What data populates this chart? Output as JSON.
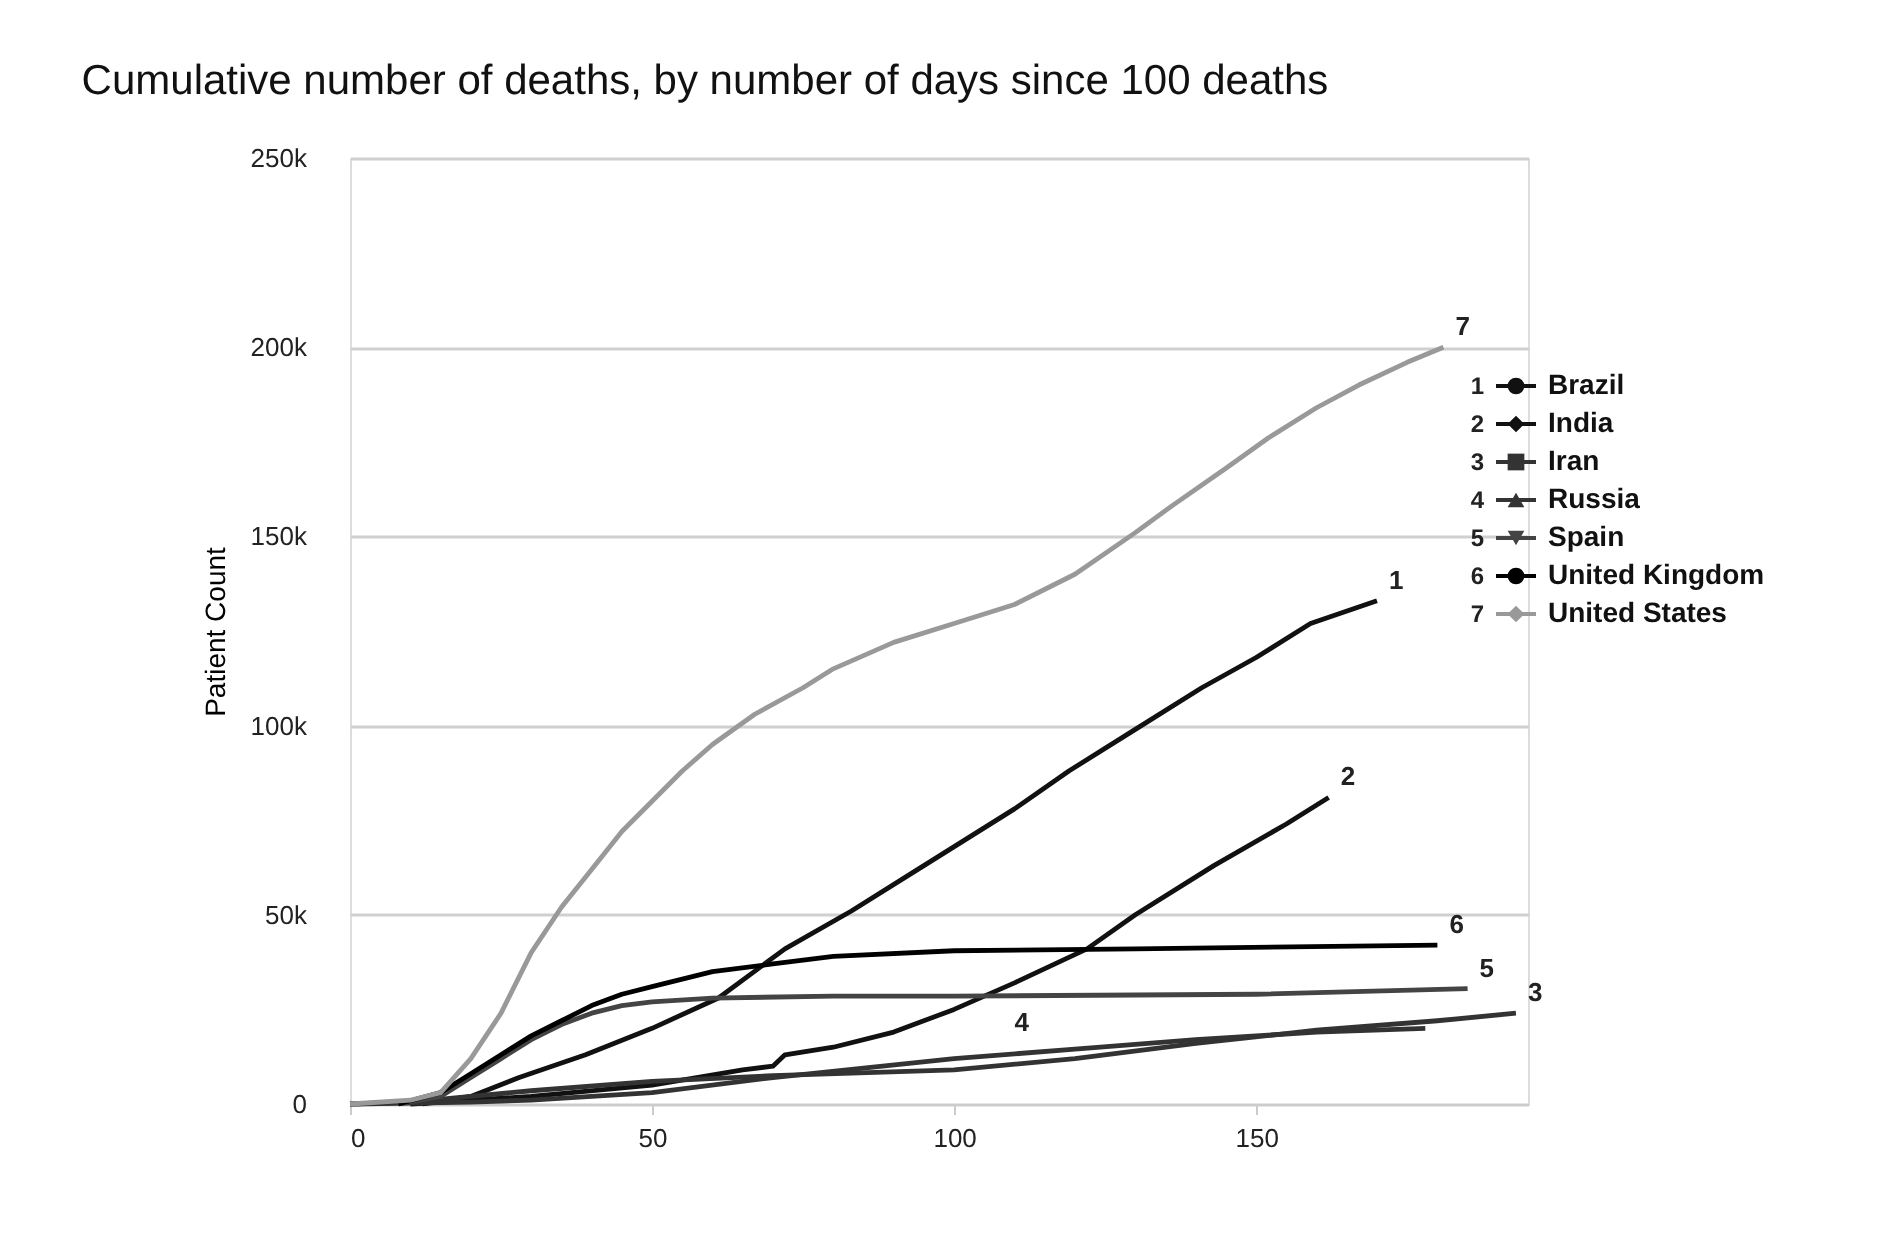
{
  "chart_data": {
    "type": "line",
    "title": "Cumulative number of deaths, by number of days since 100 deaths",
    "ylabel": "Patient Count",
    "xlim": [
      0,
      195
    ],
    "xticks": [
      0,
      50,
      100,
      150
    ],
    "ylim": [
      0,
      250000
    ],
    "yticks": [
      0,
      {
        "value": 50000,
        "label": "50k"
      },
      {
        "value": 100000,
        "label": "100k"
      },
      {
        "value": 150000,
        "label": "150k"
      },
      {
        "value": 200000,
        "label": "200k"
      },
      {
        "value": 250000,
        "label": "250k"
      }
    ],
    "grid": "y",
    "legend": "right",
    "line_style": "solid",
    "marker": "none",
    "series": [
      {
        "name": "Brazil",
        "color": "#111111",
        "x": [
          12,
          20,
          28,
          39,
          50,
          61,
          72,
          83,
          94,
          110,
          119,
          130,
          141,
          150,
          159,
          170
        ],
        "values": [
          0,
          2000,
          7000,
          13000,
          20000,
          28000,
          41000,
          51000,
          62000,
          78000,
          88000,
          99000,
          110000,
          118000,
          127000,
          133000
        ]
      },
      {
        "name": "India",
        "color": "#111111",
        "x": [
          10,
          30,
          50,
          65,
          70,
          72,
          80,
          90,
          100,
          110,
          122,
          130,
          143,
          155,
          162
        ],
        "values": [
          0,
          2000,
          5000,
          9000,
          10000,
          13000,
          15000,
          19000,
          25000,
          32000,
          41000,
          50000,
          63000,
          74000,
          81000
        ]
      },
      {
        "name": "Iran",
        "color": "#333333",
        "x": [
          0,
          10,
          20,
          30,
          50,
          70,
          100,
          120,
          140,
          160,
          180,
          193
        ],
        "values": [
          0,
          500,
          2000,
          3500,
          6000,
          7500,
          9000,
          12000,
          16000,
          19500,
          22000,
          24000
        ]
      },
      {
        "name": "Russia",
        "color": "#333333",
        "x": [
          0,
          20,
          30,
          50,
          70,
          100,
          120,
          140,
          160,
          178
        ],
        "values": [
          0,
          500,
          1000,
          3000,
          7000,
          12000,
          14500,
          17000,
          19000,
          20000
        ]
      },
      {
        "name": "Spain",
        "color": "#444444",
        "x": [
          8,
          15,
          20,
          25,
          30,
          35,
          40,
          45,
          50,
          60,
          80,
          100,
          150,
          185
        ],
        "values": [
          0,
          2000,
          7000,
          12000,
          17000,
          21000,
          24000,
          26000,
          27000,
          28000,
          28500,
          28500,
          29000,
          30500
        ]
      },
      {
        "name": "United Kingdom",
        "color": "#000000",
        "x": [
          8,
          15,
          20,
          25,
          30,
          35,
          40,
          45,
          50,
          55,
          60,
          70,
          80,
          100,
          130,
          180
        ],
        "values": [
          0,
          3000,
          8000,
          13000,
          18000,
          22000,
          26000,
          29000,
          31000,
          33000,
          35000,
          37000,
          39000,
          40500,
          41000,
          42000
        ]
      },
      {
        "name": "United States",
        "color": "#999999",
        "x": [
          0,
          10,
          15,
          20,
          25,
          30,
          35,
          40,
          45,
          50,
          55,
          60,
          67,
          75,
          80,
          90,
          100,
          110,
          120,
          130,
          136,
          145,
          152,
          160,
          167,
          175,
          181
        ],
        "values": [
          0,
          1000,
          3000,
          12000,
          24000,
          40000,
          52000,
          62000,
          72000,
          80000,
          88000,
          95000,
          103000,
          110000,
          115000,
          122000,
          127000,
          132000,
          140000,
          151000,
          158000,
          168000,
          176000,
          184000,
          190000,
          196000,
          200000
        ]
      }
    ],
    "annotations": [
      {
        "text": "1",
        "x": 170,
        "y": 133000
      },
      {
        "text": "2",
        "x": 162,
        "y": 81000
      },
      {
        "text": "3",
        "x": 193,
        "y": 24000
      },
      {
        "text": "4",
        "x": 108,
        "y": 16000
      },
      {
        "text": "5",
        "x": 185,
        "y": 30500
      },
      {
        "text": "6",
        "x": 180,
        "y": 42000
      },
      {
        "text": "7",
        "x": 181,
        "y": 200000
      }
    ]
  }
}
